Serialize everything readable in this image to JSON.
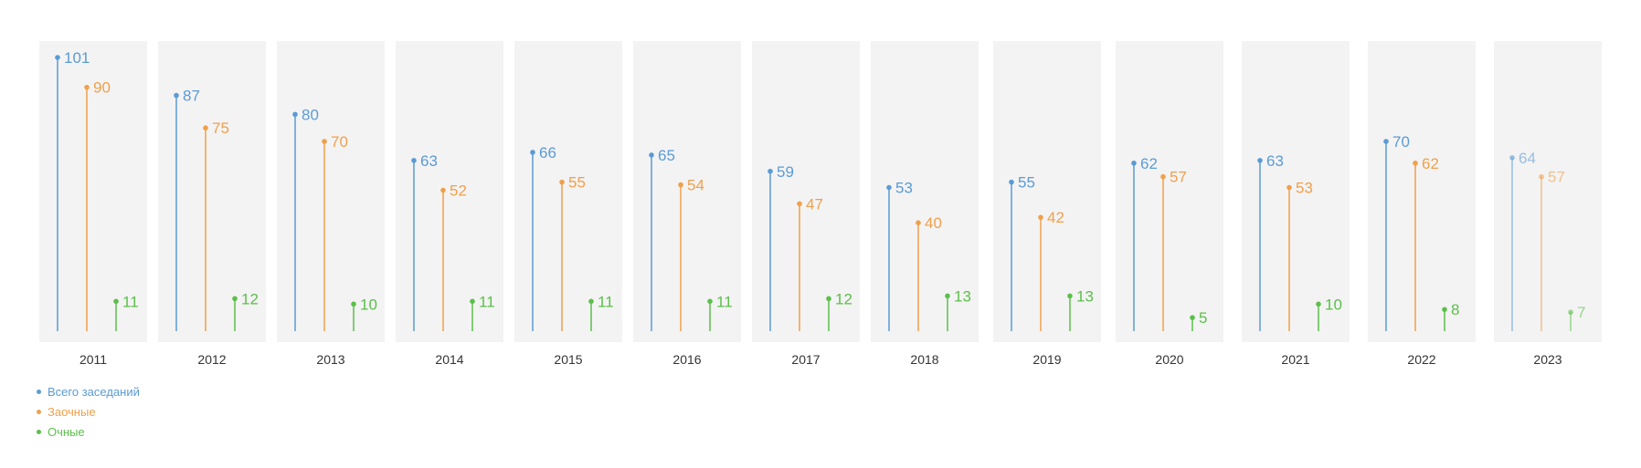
{
  "chart_data": {
    "type": "bar",
    "categories": [
      "2011",
      "2012",
      "2013",
      "2014",
      "2015",
      "2016",
      "2017",
      "2018",
      "2019",
      "2020",
      "2021",
      "2022",
      "2023"
    ],
    "series": [
      {
        "name": "Всего заседаний",
        "color": "#5b9bd5",
        "values": [
          101,
          87,
          80,
          63,
          66,
          65,
          59,
          53,
          55,
          62,
          63,
          70,
          64
        ]
      },
      {
        "name": "Заочные",
        "color": "#f0a04b",
        "values": [
          90,
          75,
          70,
          52,
          55,
          54,
          47,
          40,
          42,
          57,
          53,
          62,
          57
        ]
      },
      {
        "name": "Очные",
        "color": "#5bbf4a",
        "values": [
          11,
          12,
          10,
          11,
          11,
          11,
          12,
          13,
          13,
          5,
          10,
          8,
          7
        ]
      }
    ],
    "ylim": [
      0,
      105
    ],
    "grid": false,
    "legend": "bottom-left",
    "faded_categories": [
      "2023"
    ]
  }
}
